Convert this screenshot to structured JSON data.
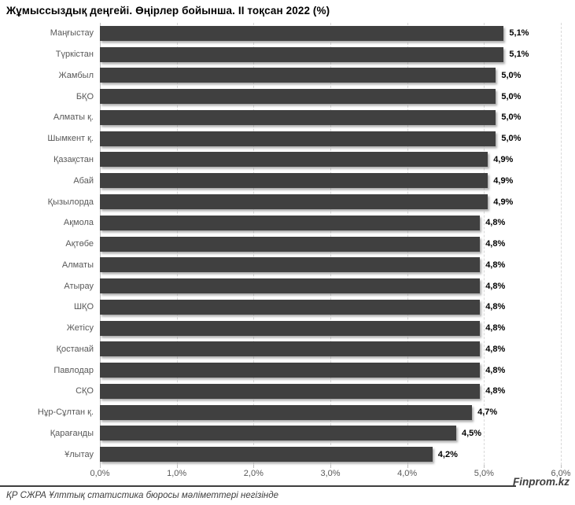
{
  "chart": {
    "title": "Жұмыссыздық деңгейі. Өңірлер бойынша. II тоқсан 2022 (%)"
  },
  "chart_data": {
    "type": "bar",
    "orientation": "horizontal",
    "title": "Жұмыссыздық деңгейі. Өңірлер бойынша. II тоқсан 2022 (%)",
    "categories": [
      "Маңғыстау",
      "Түркістан",
      "Жамбыл",
      "БҚО",
      "Алматы қ.",
      "Шымкент қ.",
      "Қазақстан",
      "Абай",
      "Қызылорда",
      "Ақмола",
      "Ақтөбе",
      "Алматы",
      "Атырау",
      "ШҚО",
      "Жетісу",
      "Қостанай",
      "Павлодар",
      "СҚО",
      "Нұр-Сұлтан қ.",
      "Қарағанды",
      "Ұлытау"
    ],
    "values": [
      5.1,
      5.1,
      5.0,
      5.0,
      5.0,
      5.0,
      4.9,
      4.9,
      4.9,
      4.8,
      4.8,
      4.8,
      4.8,
      4.8,
      4.8,
      4.8,
      4.8,
      4.8,
      4.7,
      4.5,
      4.2
    ],
    "value_labels": [
      "5,1%",
      "5,1%",
      "5,0%",
      "5,0%",
      "5,0%",
      "5,0%",
      "4,9%",
      "4,9%",
      "4,9%",
      "4,8%",
      "4,8%",
      "4,8%",
      "4,8%",
      "4,8%",
      "4,8%",
      "4,8%",
      "4,8%",
      "4,8%",
      "4,7%",
      "4,5%",
      "4,2%"
    ],
    "x_ticks": [
      "0,0%",
      "1,0%",
      "2,0%",
      "3,0%",
      "4,0%",
      "5,0%",
      "6,0%"
    ],
    "x_tick_values": [
      0,
      1,
      2,
      3,
      4,
      5,
      6
    ],
    "xlim": [
      0,
      6
    ],
    "xlabel": "",
    "ylabel": "",
    "grid": "vertical-dashed",
    "legend": "none",
    "bar_color": "#404040",
    "category_label_color": "#595959",
    "value_label_color": "#000000",
    "gridline_color": "#d9d9d9"
  },
  "footer": {
    "source": "ҚР СЖРА Ұлттық статистика бюросы мәліметтері негізінде",
    "watermark": "Finprom.kz"
  }
}
